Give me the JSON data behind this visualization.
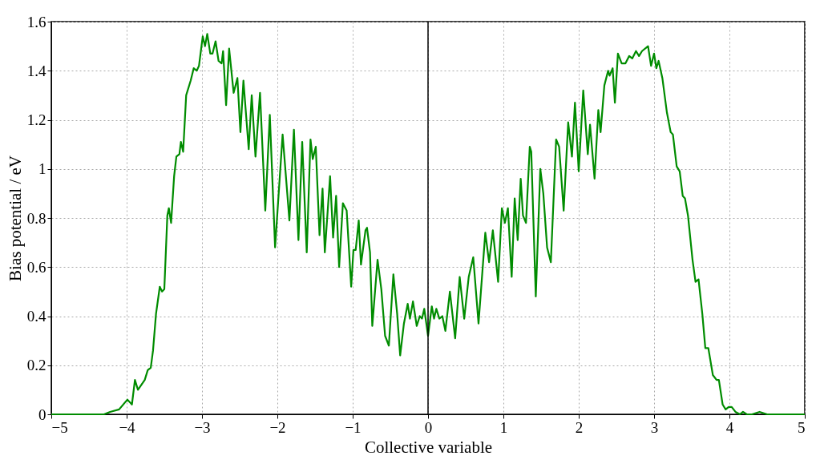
{
  "chart_data": {
    "type": "line",
    "xlabel": "Collective variable",
    "ylabel": "Bias potential / eV",
    "xlim": [
      -5,
      5
    ],
    "ylim": [
      0,
      1.6
    ],
    "xticks": [
      {
        "value": -5,
        "label": "−5"
      },
      {
        "value": -4,
        "label": "−4"
      },
      {
        "value": -3,
        "label": "−3"
      },
      {
        "value": -2,
        "label": "−2"
      },
      {
        "value": -1,
        "label": "−1"
      },
      0,
      1,
      2,
      3,
      4,
      5
    ],
    "yticks": [
      0,
      0.2,
      0.4,
      0.6,
      0.8,
      1,
      1.2,
      1.4,
      1.6
    ],
    "grid": true,
    "legend": false,
    "marker": "none",
    "line_style": "solid",
    "ref_lines": [
      {
        "axis": "x",
        "value": 0,
        "color": "#000000",
        "line_style": "solid"
      }
    ],
    "series": [
      {
        "color": "#008c00",
        "x": [
          -5,
          -4.3,
          -4.22,
          -4.1,
          -3.99,
          -3.93,
          -3.89,
          -3.85,
          -3.76,
          -3.72,
          -3.68,
          -3.65,
          -3.61,
          -3.56,
          -3.53,
          -3.5,
          -3.46,
          -3.44,
          -3.41,
          -3.37,
          -3.34,
          -3.3,
          -3.28,
          -3.25,
          -3.21,
          -3.15,
          -3.11,
          -3.07,
          -3.04,
          -2.99,
          -2.96,
          -2.93,
          -2.89,
          -2.86,
          -2.82,
          -2.78,
          -2.74,
          -2.72,
          -2.68,
          -2.64,
          -2.58,
          -2.53,
          -2.49,
          -2.45,
          -2.38,
          -2.34,
          -2.29,
          -2.23,
          -2.16,
          -2.1,
          -2.03,
          -1.93,
          -1.84,
          -1.78,
          -1.72,
          -1.67,
          -1.61,
          -1.56,
          -1.53,
          -1.49,
          -1.44,
          -1.4,
          -1.37,
          -1.3,
          -1.26,
          -1.22,
          -1.18,
          -1.13,
          -1.08,
          -1.02,
          -0.99,
          -0.96,
          -0.92,
          -0.89,
          -0.83,
          -0.81,
          -0.77,
          -0.74,
          -0.67,
          -0.62,
          -0.57,
          -0.52,
          -0.46,
          -0.41,
          -0.37,
          -0.32,
          -0.27,
          -0.24,
          -0.2,
          -0.15,
          -0.11,
          -0.08,
          -0.05,
          0,
          0.05,
          0.08,
          0.11,
          0.15,
          0.19,
          0.23,
          0.29,
          0.36,
          0.42,
          0.48,
          0.54,
          0.6,
          0.67,
          0.76,
          0.81,
          0.86,
          0.93,
          0.98,
          1.02,
          1.06,
          1.11,
          1.15,
          1.19,
          1.23,
          1.26,
          1.3,
          1.35,
          1.37,
          1.43,
          1.49,
          1.53,
          1.58,
          1.63,
          1.7,
          1.74,
          1.8,
          1.86,
          1.91,
          1.95,
          2,
          2.06,
          2.12,
          2.15,
          2.21,
          2.26,
          2.29,
          2.34,
          2.39,
          2.41,
          2.45,
          2.48,
          2.52,
          2.57,
          2.62,
          2.67,
          2.71,
          2.76,
          2.8,
          2.84,
          2.92,
          2.96,
          3,
          3.03,
          3.06,
          3.11,
          3.17,
          3.22,
          3.25,
          3.3,
          3.34,
          3.38,
          3.41,
          3.45,
          3.51,
          3.55,
          3.59,
          3.64,
          3.68,
          3.72,
          3.78,
          3.83,
          3.86,
          3.91,
          3.95,
          3.99,
          4.03,
          4.08,
          4.14,
          4.18,
          4.23,
          4.3,
          4.4,
          4.5,
          5
        ],
        "values": [
          0,
          0,
          0.01,
          0.02,
          0.06,
          0.04,
          0.14,
          0.1,
          0.14,
          0.18,
          0.19,
          0.26,
          0.41,
          0.52,
          0.5,
          0.51,
          0.81,
          0.84,
          0.78,
          0.97,
          1.05,
          1.06,
          1.11,
          1.07,
          1.3,
          1.36,
          1.41,
          1.4,
          1.42,
          1.54,
          1.5,
          1.55,
          1.47,
          1.47,
          1.52,
          1.44,
          1.43,
          1.48,
          1.26,
          1.49,
          1.31,
          1.37,
          1.15,
          1.36,
          1.08,
          1.3,
          1.05,
          1.31,
          0.83,
          1.22,
          0.68,
          1.14,
          0.79,
          1.16,
          0.71,
          1.11,
          0.66,
          1.12,
          1.04,
          1.09,
          0.73,
          0.92,
          0.66,
          0.97,
          0.72,
          0.89,
          0.6,
          0.86,
          0.83,
          0.52,
          0.67,
          0.67,
          0.79,
          0.61,
          0.75,
          0.76,
          0.66,
          0.36,
          0.63,
          0.51,
          0.32,
          0.28,
          0.57,
          0.41,
          0.24,
          0.37,
          0.45,
          0.39,
          0.46,
          0.36,
          0.4,
          0.39,
          0.43,
          0.32,
          0.44,
          0.39,
          0.43,
          0.39,
          0.4,
          0.34,
          0.5,
          0.31,
          0.56,
          0.39,
          0.56,
          0.64,
          0.37,
          0.74,
          0.62,
          0.75,
          0.54,
          0.84,
          0.78,
          0.84,
          0.56,
          0.88,
          0.71,
          0.96,
          0.81,
          0.78,
          1.09,
          1.07,
          0.48,
          1,
          0.9,
          0.68,
          0.62,
          1.12,
          1.09,
          0.83,
          1.19,
          1.05,
          1.27,
          0.99,
          1.32,
          1.06,
          1.18,
          0.96,
          1.24,
          1.15,
          1.34,
          1.4,
          1.38,
          1.41,
          1.27,
          1.47,
          1.43,
          1.43,
          1.46,
          1.45,
          1.48,
          1.46,
          1.48,
          1.5,
          1.42,
          1.47,
          1.41,
          1.44,
          1.37,
          1.23,
          1.15,
          1.14,
          1.01,
          0.99,
          0.89,
          0.88,
          0.81,
          0.63,
          0.54,
          0.55,
          0.41,
          0.27,
          0.27,
          0.16,
          0.14,
          0.14,
          0.04,
          0.02,
          0.03,
          0.03,
          0.01,
          0,
          0.01,
          0,
          0,
          0.01,
          0,
          0
        ]
      }
    ]
  }
}
